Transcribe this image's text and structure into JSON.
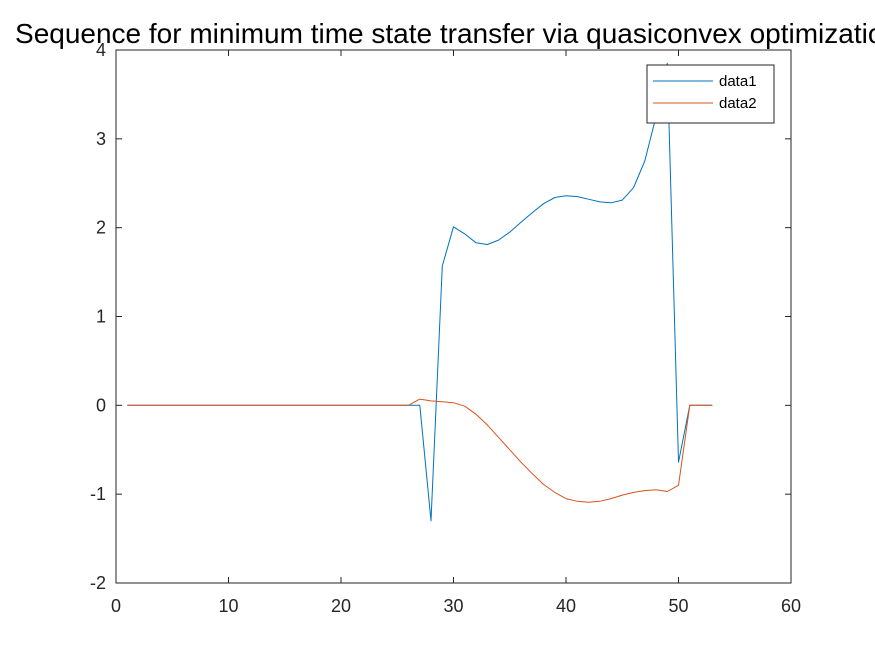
{
  "chart_data": {
    "type": "line",
    "title": "Sequence for minimum time state transfer via quasiconvex optimization",
    "xlabel": "",
    "ylabel": "",
    "xlim": [
      0,
      60
    ],
    "ylim": [
      -2,
      4
    ],
    "xticks": [
      0,
      10,
      20,
      30,
      40,
      50,
      60
    ],
    "yticks": [
      -2,
      -1,
      0,
      1,
      2,
      3,
      4
    ],
    "grid": false,
    "legend_position": "top-right",
    "series": [
      {
        "name": "data1",
        "color": "#0072BD",
        "x": [
          1,
          2,
          3,
          4,
          5,
          6,
          7,
          8,
          9,
          10,
          11,
          12,
          13,
          14,
          15,
          16,
          17,
          18,
          19,
          20,
          21,
          22,
          23,
          24,
          25,
          26,
          27,
          28,
          29,
          30,
          31,
          32,
          33,
          34,
          35,
          36,
          37,
          38,
          39,
          40,
          41,
          42,
          43,
          44,
          45,
          46,
          47,
          48,
          49,
          50,
          51,
          52,
          53
        ],
        "values": [
          0,
          0,
          0,
          0,
          0,
          0,
          0,
          0,
          0,
          0,
          0,
          0,
          0,
          0,
          0,
          0,
          0,
          0,
          0,
          0,
          0,
          0,
          0,
          0,
          0,
          0,
          0,
          -1.3,
          1.57,
          2.01,
          1.93,
          1.83,
          1.81,
          1.86,
          1.95,
          2.06,
          2.17,
          2.27,
          2.34,
          2.36,
          2.35,
          2.32,
          2.29,
          2.28,
          2.31,
          2.45,
          2.75,
          3.25,
          3.85,
          -0.64,
          0,
          0,
          0
        ]
      },
      {
        "name": "data2",
        "color": "#D95319",
        "x": [
          1,
          2,
          3,
          4,
          5,
          6,
          7,
          8,
          9,
          10,
          11,
          12,
          13,
          14,
          15,
          16,
          17,
          18,
          19,
          20,
          21,
          22,
          23,
          24,
          25,
          26,
          27,
          28,
          29,
          30,
          31,
          32,
          33,
          34,
          35,
          36,
          37,
          38,
          39,
          40,
          41,
          42,
          43,
          44,
          45,
          46,
          47,
          48,
          49,
          50,
          51,
          52,
          53
        ],
        "values": [
          0,
          0,
          0,
          0,
          0,
          0,
          0,
          0,
          0,
          0,
          0,
          0,
          0,
          0,
          0,
          0,
          0,
          0,
          0,
          0,
          0,
          0,
          0,
          0,
          0,
          0,
          0.07,
          0.05,
          0.04,
          0.03,
          -0.01,
          -0.1,
          -0.22,
          -0.36,
          -0.5,
          -0.64,
          -0.77,
          -0.89,
          -0.98,
          -1.05,
          -1.08,
          -1.09,
          -1.08,
          -1.05,
          -1.01,
          -0.98,
          -0.96,
          -0.95,
          -0.97,
          -0.9,
          0,
          0,
          0
        ]
      }
    ]
  }
}
